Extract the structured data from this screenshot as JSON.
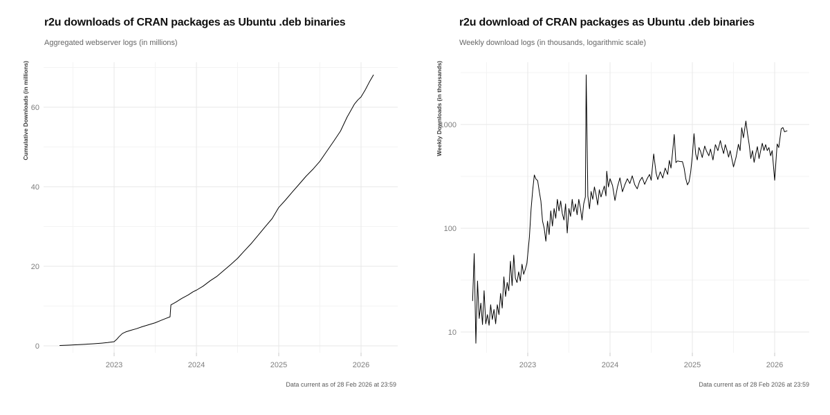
{
  "page": {
    "background": "#ffffff",
    "layout": "two-panel side-by-side ggplot-style figure"
  },
  "colors": {
    "line": "#000000",
    "grid_major": "#e7e7e7",
    "grid_minor": "#f3f3f3",
    "tick_mark": "#c9c9c9",
    "title": "#0f0f0f",
    "subtitle": "#666666",
    "caption": "#5a5a5a",
    "axis_text": "#7d7d7d",
    "axis_title": "#3a3a3a",
    "background": "#ffffff"
  },
  "chart_data": [
    {
      "type": "line",
      "title": "r2u downloads of CRAN packages as Ubuntu .deb binaries",
      "subtitle": "Aggregated webserver logs (in millions)",
      "caption": "Data current as of 28 Feb 2026 at 23:59",
      "xlabel": "",
      "ylabel": "Cumulative Downloads (in millions)",
      "y_scale": "linear",
      "xlim": [
        2022.3,
        2026.3
      ],
      "ylim": [
        0,
        71
      ],
      "x_ticks": [
        2023,
        2024,
        2025,
        2026
      ],
      "x_tick_labels": [
        "2023",
        "2024",
        "2025",
        "2026"
      ],
      "x_minor": [
        2022.5,
        2023.5,
        2024.5,
        2025.5,
        2026.5
      ],
      "y_ticks": [
        0,
        20,
        40,
        60
      ],
      "y_tick_labels": [
        "0",
        "20",
        "40",
        "60"
      ],
      "y_minor": [
        10,
        30,
        50,
        70
      ],
      "grid": true,
      "legend": "none",
      "series": [
        {
          "name": "Cumulative downloads (millions)",
          "points": [
            [
              2022.34,
              0.08
            ],
            [
              2022.45,
              0.18
            ],
            [
              2022.55,
              0.28
            ],
            [
              2022.65,
              0.4
            ],
            [
              2022.75,
              0.52
            ],
            [
              2022.85,
              0.68
            ],
            [
              2022.92,
              0.82
            ],
            [
              2023.0,
              1.05
            ],
            [
              2023.03,
              1.6
            ],
            [
              2023.06,
              2.3
            ],
            [
              2023.1,
              3.1
            ],
            [
              2023.14,
              3.5
            ],
            [
              2023.2,
              3.9
            ],
            [
              2023.27,
              4.3
            ],
            [
              2023.34,
              4.8
            ],
            [
              2023.42,
              5.3
            ],
            [
              2023.5,
              5.8
            ],
            [
              2023.57,
              6.4
            ],
            [
              2023.63,
              6.9
            ],
            [
              2023.68,
              7.3
            ],
            [
              2023.69,
              10.3
            ],
            [
              2023.75,
              11.0
            ],
            [
              2023.82,
              11.9
            ],
            [
              2023.9,
              12.8
            ],
            [
              2023.96,
              13.6
            ],
            [
              2024.0,
              14.0
            ],
            [
              2024.08,
              15.0
            ],
            [
              2024.17,
              16.4
            ],
            [
              2024.25,
              17.5
            ],
            [
              2024.33,
              18.9
            ],
            [
              2024.42,
              20.5
            ],
            [
              2024.5,
              22.0
            ],
            [
              2024.58,
              23.8
            ],
            [
              2024.67,
              25.8
            ],
            [
              2024.75,
              27.8
            ],
            [
              2024.83,
              29.8
            ],
            [
              2024.92,
              32.0
            ],
            [
              2025.0,
              34.8
            ],
            [
              2025.08,
              36.6
            ],
            [
              2025.17,
              38.8
            ],
            [
              2025.25,
              40.7
            ],
            [
              2025.33,
              42.6
            ],
            [
              2025.42,
              44.5
            ],
            [
              2025.5,
              46.4
            ],
            [
              2025.58,
              48.8
            ],
            [
              2025.67,
              51.5
            ],
            [
              2025.75,
              54.0
            ],
            [
              2025.83,
              57.5
            ],
            [
              2025.92,
              60.8
            ],
            [
              2025.96,
              61.8
            ],
            [
              2026.0,
              62.6
            ],
            [
              2026.05,
              64.3
            ],
            [
              2026.1,
              66.3
            ],
            [
              2026.15,
              68.1
            ]
          ]
        }
      ]
    },
    {
      "type": "line",
      "title": "r2u download of CRAN packages as Ubuntu .deb binaries",
      "subtitle": "Weekly download logs (in thousands, logarithmic scale)",
      "caption": "Data current as of 28 Feb 2026 at 23:59",
      "xlabel": "",
      "ylabel": "Weekly Downloads (in thousands)",
      "y_scale": "log10",
      "xlim": [
        2022.3,
        2026.3
      ],
      "ylim": [
        7,
        3200
      ],
      "x_ticks": [
        2023,
        2024,
        2025,
        2026
      ],
      "x_tick_labels": [
        "2023",
        "2024",
        "2025",
        "2026"
      ],
      "x_minor": [
        2022.5,
        2023.5,
        2024.5,
        2025.5,
        2026.5
      ],
      "y_ticks": [
        10,
        100,
        1000
      ],
      "y_tick_labels": [
        "10",
        "100",
        "1000"
      ],
      "y_minor": [
        31.62,
        316.2,
        3162
      ],
      "grid": true,
      "legend": "none",
      "series": [
        {
          "name": "Weekly downloads (thousands)",
          "points": [
            [
              2022.33,
              20
            ],
            [
              2022.35,
              57
            ],
            [
              2022.37,
              7.8
            ],
            [
              2022.39,
              31
            ],
            [
              2022.41,
              13.5
            ],
            [
              2022.43,
              19
            ],
            [
              2022.45,
              11.8
            ],
            [
              2022.47,
              25
            ],
            [
              2022.49,
              12
            ],
            [
              2022.51,
              14.7
            ],
            [
              2022.53,
              11.6
            ],
            [
              2022.55,
              18.3
            ],
            [
              2022.57,
              13.2
            ],
            [
              2022.59,
              16.5
            ],
            [
              2022.61,
              12
            ],
            [
              2022.63,
              18.3
            ],
            [
              2022.65,
              14.7
            ],
            [
              2022.67,
              23.5
            ],
            [
              2022.69,
              17
            ],
            [
              2022.71,
              34
            ],
            [
              2022.73,
              22
            ],
            [
              2022.75,
              30
            ],
            [
              2022.77,
              25
            ],
            [
              2022.79,
              48
            ],
            [
              2022.81,
              28
            ],
            [
              2022.83,
              55
            ],
            [
              2022.85,
              33
            ],
            [
              2022.87,
              30
            ],
            [
              2022.89,
              38
            ],
            [
              2022.91,
              31
            ],
            [
              2022.93,
              45
            ],
            [
              2022.95,
              36
            ],
            [
              2022.97,
              40
            ],
            [
              2022.99,
              46
            ],
            [
              2023.02,
              82
            ],
            [
              2023.04,
              152
            ],
            [
              2023.06,
              230
            ],
            [
              2023.08,
              326
            ],
            [
              2023.1,
              298
            ],
            [
              2023.12,
              288
            ],
            [
              2023.14,
              226
            ],
            [
              2023.16,
              183
            ],
            [
              2023.18,
              117
            ],
            [
              2023.2,
              100
            ],
            [
              2023.22,
              75
            ],
            [
              2023.24,
              117
            ],
            [
              2023.26,
              87
            ],
            [
              2023.28,
              147
            ],
            [
              2023.3,
              105
            ],
            [
              2023.32,
              155
            ],
            [
              2023.34,
              125
            ],
            [
              2023.36,
              190
            ],
            [
              2023.38,
              147
            ],
            [
              2023.4,
              183
            ],
            [
              2023.42,
              138
            ],
            [
              2023.44,
              120
            ],
            [
              2023.46,
              172
            ],
            [
              2023.48,
              90
            ],
            [
              2023.5,
              155
            ],
            [
              2023.52,
              130
            ],
            [
              2023.54,
              190
            ],
            [
              2023.56,
              145
            ],
            [
              2023.58,
              172
            ],
            [
              2023.6,
              135
            ],
            [
              2023.62,
              190
            ],
            [
              2023.64,
              155
            ],
            [
              2023.66,
              120
            ],
            [
              2023.68,
              172
            ],
            [
              2023.7,
              200
            ],
            [
              2023.71,
              3005
            ],
            [
              2023.73,
              205
            ],
            [
              2023.75,
              154
            ],
            [
              2023.77,
              226
            ],
            [
              2023.79,
              190
            ],
            [
              2023.81,
              250
            ],
            [
              2023.83,
              210
            ],
            [
              2023.85,
              168
            ],
            [
              2023.87,
              235
            ],
            [
              2023.89,
              200
            ],
            [
              2023.91,
              226
            ],
            [
              2023.93,
              255
            ],
            [
              2023.95,
              205
            ],
            [
              2023.96,
              355
            ],
            [
              2023.98,
              250
            ],
            [
              2024.0,
              300
            ],
            [
              2024.03,
              258
            ],
            [
              2024.06,
              185
            ],
            [
              2024.09,
              250
            ],
            [
              2024.12,
              306
            ],
            [
              2024.15,
              225
            ],
            [
              2024.18,
              263
            ],
            [
              2024.21,
              300
            ],
            [
              2024.24,
              270
            ],
            [
              2024.27,
              320
            ],
            [
              2024.3,
              263
            ],
            [
              2024.33,
              240
            ],
            [
              2024.36,
              285
            ],
            [
              2024.39,
              310
            ],
            [
              2024.42,
              265
            ],
            [
              2024.45,
              300
            ],
            [
              2024.48,
              330
            ],
            [
              2024.5,
              290
            ],
            [
              2024.53,
              520
            ],
            [
              2024.56,
              340
            ],
            [
              2024.58,
              295
            ],
            [
              2024.61,
              350
            ],
            [
              2024.64,
              305
            ],
            [
              2024.67,
              380
            ],
            [
              2024.7,
              330
            ],
            [
              2024.72,
              450
            ],
            [
              2024.74,
              380
            ],
            [
              2024.76,
              540
            ],
            [
              2024.78,
              800
            ],
            [
              2024.8,
              430
            ],
            [
              2024.82,
              445
            ],
            [
              2024.85,
              440
            ],
            [
              2024.88,
              438
            ],
            [
              2024.9,
              380
            ],
            [
              2024.92,
              300
            ],
            [
              2024.94,
              262
            ],
            [
              2024.96,
              280
            ],
            [
              2024.98,
              350
            ],
            [
              2025.0,
              500
            ],
            [
              2025.02,
              815
            ],
            [
              2025.04,
              520
            ],
            [
              2025.06,
              455
            ],
            [
              2025.08,
              600
            ],
            [
              2025.1,
              550
            ],
            [
              2025.12,
              480
            ],
            [
              2025.15,
              620
            ],
            [
              2025.17,
              560
            ],
            [
              2025.2,
              500
            ],
            [
              2025.22,
              580
            ],
            [
              2025.25,
              455
            ],
            [
              2025.28,
              640
            ],
            [
              2025.31,
              560
            ],
            [
              2025.34,
              700
            ],
            [
              2025.36,
              600
            ],
            [
              2025.38,
              525
            ],
            [
              2025.4,
              640
            ],
            [
              2025.42,
              565
            ],
            [
              2025.44,
              485
            ],
            [
              2025.46,
              560
            ],
            [
              2025.5,
              390
            ],
            [
              2025.53,
              480
            ],
            [
              2025.56,
              645
            ],
            [
              2025.58,
              560
            ],
            [
              2025.6,
              930
            ],
            [
              2025.62,
              745
            ],
            [
              2025.65,
              1080
            ],
            [
              2025.67,
              820
            ],
            [
              2025.69,
              645
            ],
            [
              2025.71,
              470
            ],
            [
              2025.73,
              560
            ],
            [
              2025.75,
              432
            ],
            [
              2025.77,
              520
            ],
            [
              2025.79,
              612
            ],
            [
              2025.81,
              470
            ],
            [
              2025.83,
              560
            ],
            [
              2025.85,
              660
            ],
            [
              2025.87,
              562
            ],
            [
              2025.89,
              640
            ],
            [
              2025.91,
              560
            ],
            [
              2025.93,
              600
            ],
            [
              2025.95,
              500
            ],
            [
              2025.97,
              560
            ],
            [
              2026.0,
              290
            ],
            [
              2026.03,
              650
            ],
            [
              2026.05,
              600
            ],
            [
              2026.08,
              910
            ],
            [
              2026.1,
              935
            ],
            [
              2026.12,
              850
            ],
            [
              2026.15,
              870
            ]
          ]
        }
      ]
    }
  ]
}
